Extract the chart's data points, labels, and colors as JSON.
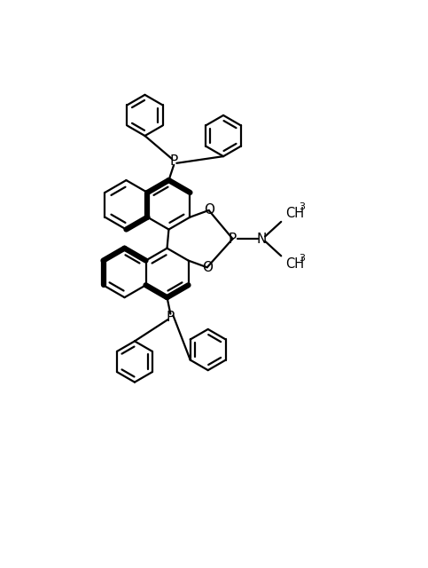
{
  "bg": "#ffffff",
  "lc": "#000000",
  "lw": 1.6,
  "blw": 4.5,
  "figsize": [
    4.83,
    6.4
  ],
  "dpi": 100,
  "xlim": [
    0,
    9.66
  ],
  "ylim": [
    0,
    12.8
  ],
  "ring_r": 0.72,
  "ph_r": 0.6
}
